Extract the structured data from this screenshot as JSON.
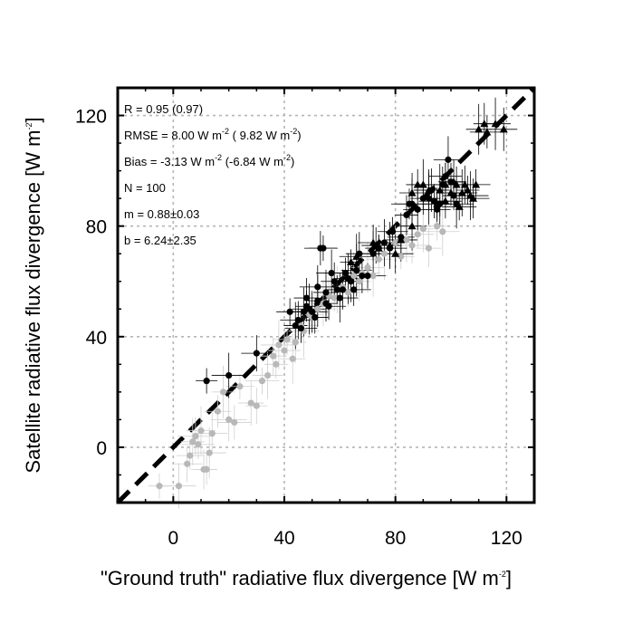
{
  "chart_data": {
    "type": "scatter",
    "title": "",
    "xlabel": "\"Ground truth\" radiative flux divergence [W m",
    "xlabel_sup": "-2",
    "xlabel_end": "]",
    "ylabel": "Satellite radiative flux divergence [W m",
    "ylabel_sup": "-2",
    "ylabel_end": "]",
    "xlim": [
      -20,
      130
    ],
    "ylim": [
      -20,
      130
    ],
    "xticks": [
      0,
      40,
      80,
      120
    ],
    "yticks": [
      0,
      40,
      80,
      120
    ],
    "xtick_labels": [
      "0",
      "40",
      "80",
      "120"
    ],
    "ytick_labels": [
      "0",
      "40",
      "80",
      "120"
    ],
    "grid": true,
    "reference_line": {
      "style": "dashed",
      "x": [
        -20,
        130
      ],
      "y": [
        -20,
        130
      ],
      "color": "#000000"
    },
    "stats": [
      {
        "text": "R = 0.95    (0.97)"
      },
      {
        "text": "RMSE = 8.00  W m",
        "sup": "-2",
        "text2": "    ( 9.82 W m",
        "sup2": "-2",
        "text3": ")"
      },
      {
        "text": "Bias = -3.13  W m",
        "sup": "-2",
        "text2": "   (-6.84 W m",
        "sup2": "-2",
        "text3": ")"
      },
      {
        "text": "N = 100"
      },
      {
        "text": "m = 0.88±0.03"
      },
      {
        "text": "b = 6.24±2.35"
      }
    ],
    "series": [
      {
        "marker": "circle",
        "color": "#b8b8b8",
        "points": [
          [
            -5,
            -14
          ],
          [
            2,
            -14
          ],
          [
            5,
            -6
          ],
          [
            6,
            -3
          ],
          [
            7,
            2
          ],
          [
            8,
            4
          ],
          [
            9,
            1
          ],
          [
            10,
            6
          ],
          [
            11,
            -8
          ],
          [
            12,
            -8
          ],
          [
            13,
            -2
          ],
          [
            14,
            5
          ],
          [
            16,
            13
          ],
          [
            18,
            20
          ],
          [
            20,
            10
          ],
          [
            22,
            9
          ],
          [
            24,
            22
          ],
          [
            28,
            16
          ],
          [
            30,
            15
          ],
          [
            32,
            24
          ],
          [
            34,
            26
          ],
          [
            36,
            33
          ],
          [
            37,
            30
          ],
          [
            38,
            37
          ],
          [
            40,
            35
          ],
          [
            41,
            39
          ],
          [
            43,
            32
          ],
          [
            44,
            38
          ],
          [
            46,
            44
          ],
          [
            47,
            42
          ],
          [
            49,
            48
          ],
          [
            50,
            47
          ],
          [
            52,
            50
          ],
          [
            54,
            52
          ],
          [
            56,
            55
          ],
          [
            58,
            54
          ],
          [
            59,
            57
          ],
          [
            61,
            58
          ],
          [
            63,
            56
          ],
          [
            65,
            62
          ],
          [
            67,
            60
          ],
          [
            68,
            63
          ],
          [
            70,
            65
          ],
          [
            72,
            62
          ],
          [
            74,
            68
          ],
          [
            76,
            70
          ],
          [
            78,
            72
          ],
          [
            80,
            74
          ],
          [
            82,
            69
          ],
          [
            84,
            75
          ],
          [
            86,
            73
          ],
          [
            88,
            77
          ],
          [
            90,
            79
          ],
          [
            92,
            72
          ],
          [
            95,
            80
          ],
          [
            97,
            78
          ]
        ]
      },
      {
        "marker": "circle",
        "color": "#000000",
        "points": [
          [
            12,
            24
          ],
          [
            20,
            26
          ],
          [
            30,
            34
          ],
          [
            42,
            49
          ],
          [
            44,
            44
          ],
          [
            45,
            46
          ],
          [
            46,
            43
          ],
          [
            47,
            49
          ],
          [
            48,
            54
          ],
          [
            48,
            51
          ],
          [
            49,
            50
          ],
          [
            50,
            49
          ],
          [
            51,
            47
          ],
          [
            52,
            53
          ],
          [
            52,
            58
          ],
          [
            53,
            72
          ],
          [
            54,
            72
          ],
          [
            55,
            56
          ],
          [
            55,
            52
          ],
          [
            56,
            51
          ],
          [
            57,
            63
          ],
          [
            58,
            60
          ],
          [
            59,
            57
          ],
          [
            60,
            54
          ],
          [
            61,
            57
          ],
          [
            62,
            63
          ],
          [
            63,
            61
          ],
          [
            64,
            60
          ],
          [
            65,
            57
          ],
          [
            66,
            64
          ],
          [
            67,
            70
          ],
          [
            68,
            62
          ],
          [
            70,
            62
          ],
          [
            72,
            70
          ],
          [
            73,
            73
          ],
          [
            74,
            72
          ],
          [
            76,
            74
          ],
          [
            78,
            72
          ],
          [
            79,
            78
          ],
          [
            82,
            76
          ],
          [
            84,
            84
          ],
          [
            85,
            88
          ],
          [
            86,
            88
          ],
          [
            88,
            86
          ],
          [
            90,
            90
          ],
          [
            92,
            90
          ],
          [
            93,
            93
          ],
          [
            94,
            89
          ],
          [
            95,
            86
          ],
          [
            96,
            88
          ],
          [
            97,
            95
          ],
          [
            98,
            98
          ],
          [
            99,
            104
          ],
          [
            100,
            96
          ],
          [
            101,
            91
          ],
          [
            102,
            88
          ]
        ]
      },
      {
        "marker": "triangle",
        "color": "#000000",
        "points": [
          [
            64,
            67
          ],
          [
            66,
            69
          ],
          [
            72,
            74
          ],
          [
            74,
            72
          ],
          [
            78,
            73
          ],
          [
            80,
            70
          ],
          [
            82,
            75
          ],
          [
            86,
            80
          ],
          [
            86,
            92
          ],
          [
            88,
            95
          ],
          [
            90,
            95
          ],
          [
            92,
            93
          ],
          [
            95,
            88
          ],
          [
            96,
            93
          ],
          [
            98,
            95
          ],
          [
            98,
            89
          ],
          [
            100,
            92
          ],
          [
            101,
            96
          ],
          [
            102,
            95
          ],
          [
            103,
            87
          ],
          [
            104,
            92
          ],
          [
            105,
            95
          ],
          [
            106,
            93
          ],
          [
            107,
            91
          ],
          [
            108,
            90
          ],
          [
            109,
            95
          ],
          [
            110,
            115
          ],
          [
            112,
            117
          ],
          [
            113,
            114
          ],
          [
            116,
            117
          ],
          [
            119,
            115
          ]
        ]
      }
    ]
  }
}
